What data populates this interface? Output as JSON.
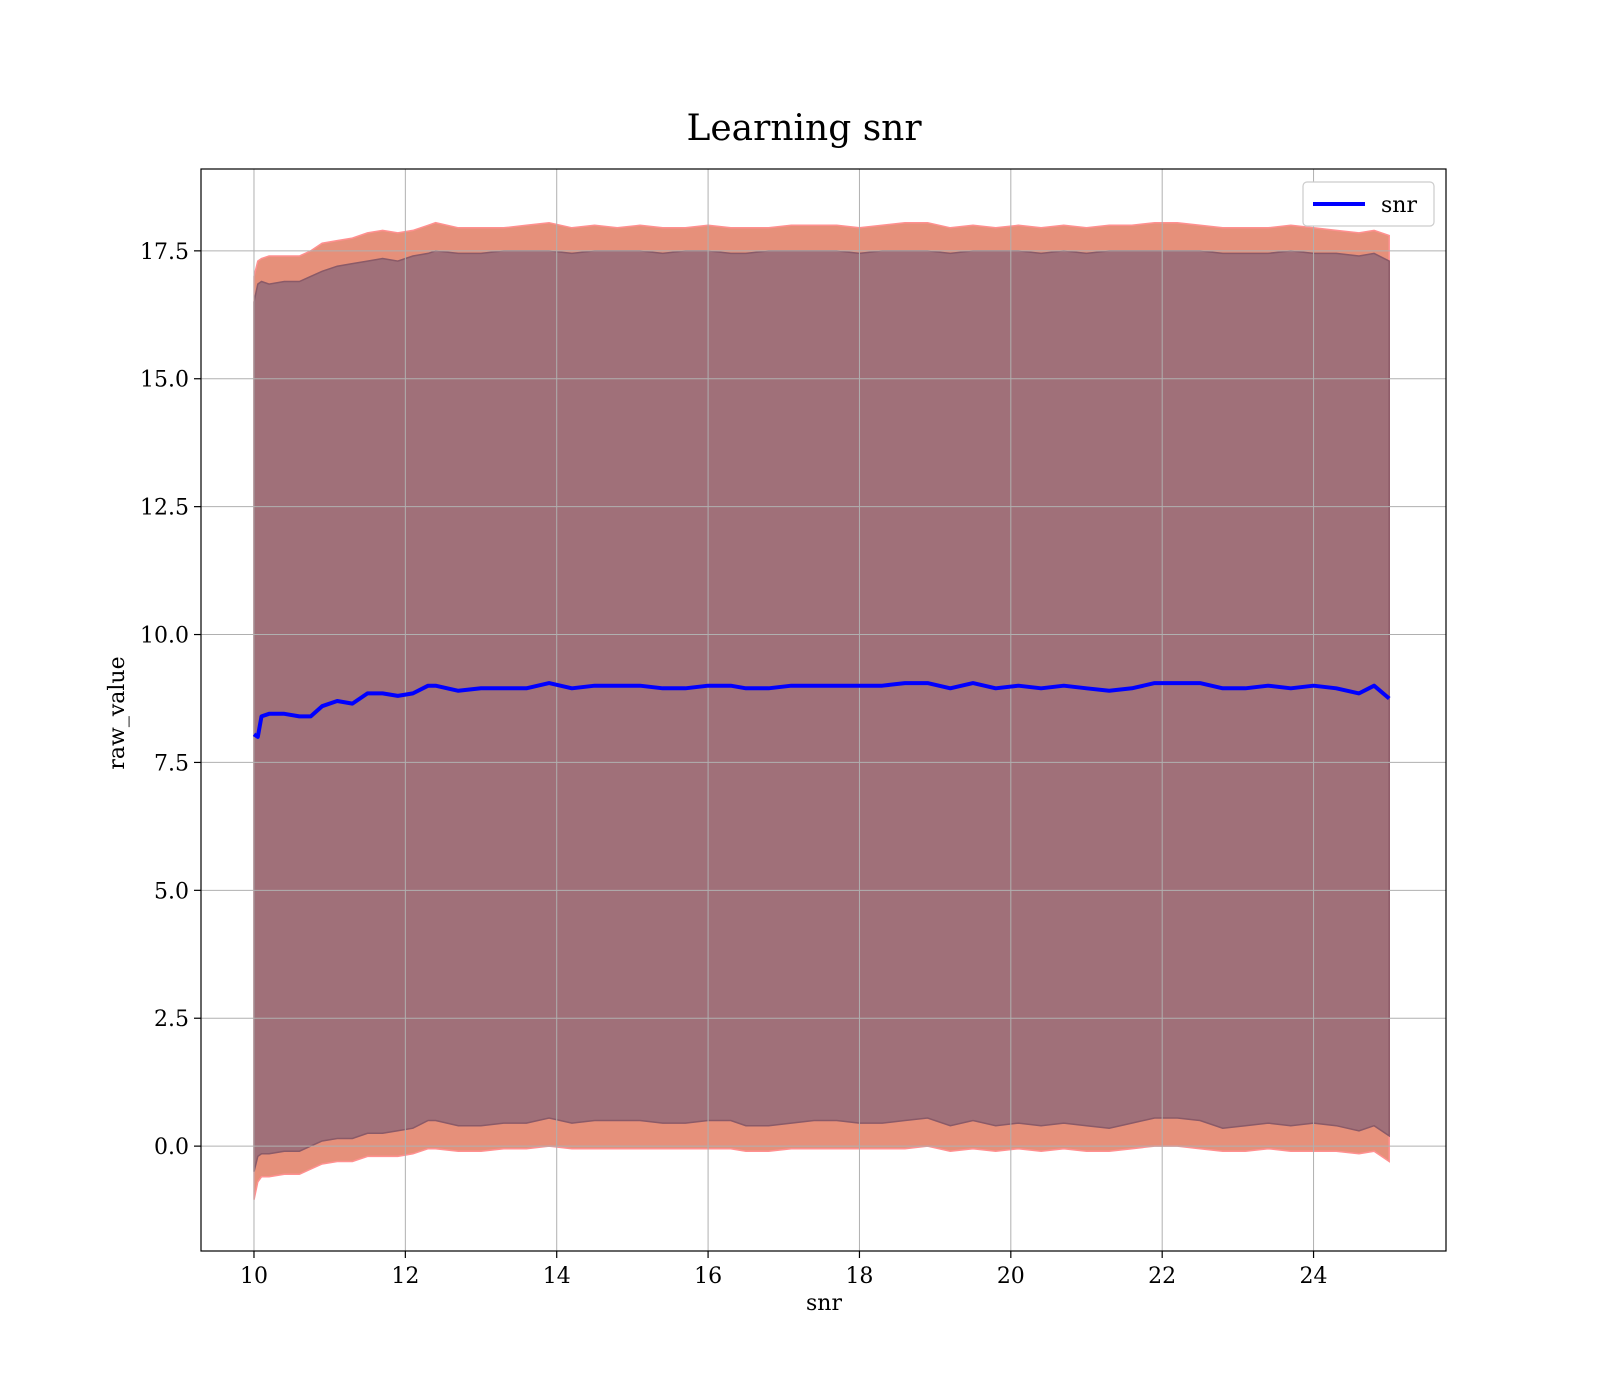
{
  "chart_data": {
    "type": "line",
    "title": "Learning snr",
    "xlabel": "snr",
    "ylabel": "raw_value",
    "xlim": [
      9.3,
      25.75
    ],
    "ylim": [
      -2.05,
      19.1
    ],
    "xticks": [
      10,
      12,
      14,
      16,
      18,
      20,
      22,
      24
    ],
    "yticks": [
      0.0,
      2.5,
      5.0,
      7.5,
      10.0,
      12.5,
      15.0,
      17.5
    ],
    "ytick_labels": [
      "0.0",
      "2.5",
      "5.0",
      "7.5",
      "10.0",
      "12.5",
      "15.0",
      "17.5"
    ],
    "grid": true,
    "legend": {
      "position": "top-right",
      "entries": [
        "snr"
      ]
    },
    "series": [
      {
        "name": "snr",
        "color": "#0000ff",
        "x": [
          10.0,
          10.05,
          10.1,
          10.2,
          10.4,
          10.6,
          10.75,
          10.9,
          11.1,
          11.3,
          11.5,
          11.7,
          11.9,
          12.1,
          12.3,
          12.4,
          12.7,
          13.0,
          13.3,
          13.6,
          13.9,
          14.2,
          14.5,
          14.8,
          15.1,
          15.4,
          15.7,
          16.0,
          16.3,
          16.5,
          16.8,
          17.1,
          17.4,
          17.7,
          18.0,
          18.3,
          18.6,
          18.9,
          19.2,
          19.5,
          19.8,
          20.1,
          20.4,
          20.7,
          21.0,
          21.3,
          21.6,
          21.9,
          22.2,
          22.5,
          22.8,
          23.1,
          23.4,
          23.7,
          24.0,
          24.3,
          24.6,
          24.8,
          25.0
        ],
        "y": [
          8.05,
          8.0,
          8.4,
          8.45,
          8.45,
          8.4,
          8.4,
          8.6,
          8.7,
          8.65,
          8.85,
          8.85,
          8.8,
          8.85,
          9.0,
          9.0,
          8.9,
          8.95,
          8.95,
          8.95,
          9.05,
          8.95,
          9.0,
          9.0,
          9.0,
          8.95,
          8.95,
          9.0,
          9.0,
          8.95,
          8.95,
          9.0,
          9.0,
          9.0,
          9.0,
          9.0,
          9.05,
          9.05,
          8.95,
          9.05,
          8.95,
          9.0,
          8.95,
          9.0,
          8.95,
          8.9,
          8.95,
          9.05,
          9.05,
          9.05,
          8.95,
          8.95,
          9.0,
          8.95,
          9.0,
          8.95,
          8.85,
          9.0,
          8.75
        ]
      }
    ],
    "bands": [
      {
        "name": "outer",
        "color": "#e6907a",
        "edge_color": "#ff9090",
        "upper": [
          17.0,
          17.3,
          17.35,
          17.4,
          17.4,
          17.4,
          17.5,
          17.65,
          17.7,
          17.75,
          17.85,
          17.9,
          17.85,
          17.9,
          18.0,
          18.05,
          17.95,
          17.95,
          17.95,
          18.0,
          18.05,
          17.95,
          18.0,
          17.95,
          18.0,
          17.95,
          17.95,
          18.0,
          17.95,
          17.95,
          17.95,
          18.0,
          18.0,
          18.0,
          17.95,
          18.0,
          18.05,
          18.05,
          17.95,
          18.0,
          17.95,
          18.0,
          17.95,
          18.0,
          17.95,
          18.0,
          18.0,
          18.05,
          18.05,
          18.0,
          17.95,
          17.95,
          17.95,
          18.0,
          17.95,
          17.9,
          17.85,
          17.9,
          17.8
        ],
        "lower": [
          -1.05,
          -0.7,
          -0.6,
          -0.6,
          -0.55,
          -0.55,
          -0.45,
          -0.35,
          -0.3,
          -0.3,
          -0.2,
          -0.2,
          -0.2,
          -0.15,
          -0.05,
          -0.05,
          -0.1,
          -0.1,
          -0.05,
          -0.05,
          0.0,
          -0.05,
          -0.05,
          -0.05,
          -0.05,
          -0.05,
          -0.05,
          -0.05,
          -0.05,
          -0.1,
          -0.1,
          -0.05,
          -0.05,
          -0.05,
          -0.05,
          -0.05,
          -0.05,
          0.0,
          -0.1,
          -0.05,
          -0.1,
          -0.05,
          -0.1,
          -0.05,
          -0.1,
          -0.1,
          -0.05,
          0.0,
          0.0,
          -0.05,
          -0.1,
          -0.1,
          -0.05,
          -0.1,
          -0.1,
          -0.1,
          -0.15,
          -0.1,
          -0.3
        ]
      },
      {
        "name": "inner",
        "color": "#a07079",
        "edge_color": "#8a5a68",
        "upper": [
          16.5,
          16.85,
          16.9,
          16.85,
          16.9,
          16.9,
          17.0,
          17.1,
          17.2,
          17.25,
          17.3,
          17.35,
          17.3,
          17.4,
          17.45,
          17.5,
          17.45,
          17.45,
          17.5,
          17.5,
          17.5,
          17.45,
          17.5,
          17.5,
          17.5,
          17.45,
          17.5,
          17.5,
          17.45,
          17.45,
          17.5,
          17.5,
          17.5,
          17.5,
          17.45,
          17.5,
          17.5,
          17.5,
          17.45,
          17.5,
          17.5,
          17.5,
          17.45,
          17.5,
          17.45,
          17.5,
          17.5,
          17.5,
          17.5,
          17.5,
          17.45,
          17.45,
          17.45,
          17.5,
          17.45,
          17.45,
          17.4,
          17.45,
          17.3
        ],
        "lower": [
          -0.5,
          -0.2,
          -0.15,
          -0.15,
          -0.1,
          -0.1,
          0.0,
          0.1,
          0.15,
          0.15,
          0.25,
          0.25,
          0.3,
          0.35,
          0.5,
          0.5,
          0.4,
          0.4,
          0.45,
          0.45,
          0.55,
          0.45,
          0.5,
          0.5,
          0.5,
          0.45,
          0.45,
          0.5,
          0.5,
          0.4,
          0.4,
          0.45,
          0.5,
          0.5,
          0.45,
          0.45,
          0.5,
          0.55,
          0.4,
          0.5,
          0.4,
          0.45,
          0.4,
          0.45,
          0.4,
          0.35,
          0.45,
          0.55,
          0.55,
          0.5,
          0.35,
          0.4,
          0.45,
          0.4,
          0.45,
          0.4,
          0.3,
          0.4,
          0.2
        ]
      }
    ]
  }
}
